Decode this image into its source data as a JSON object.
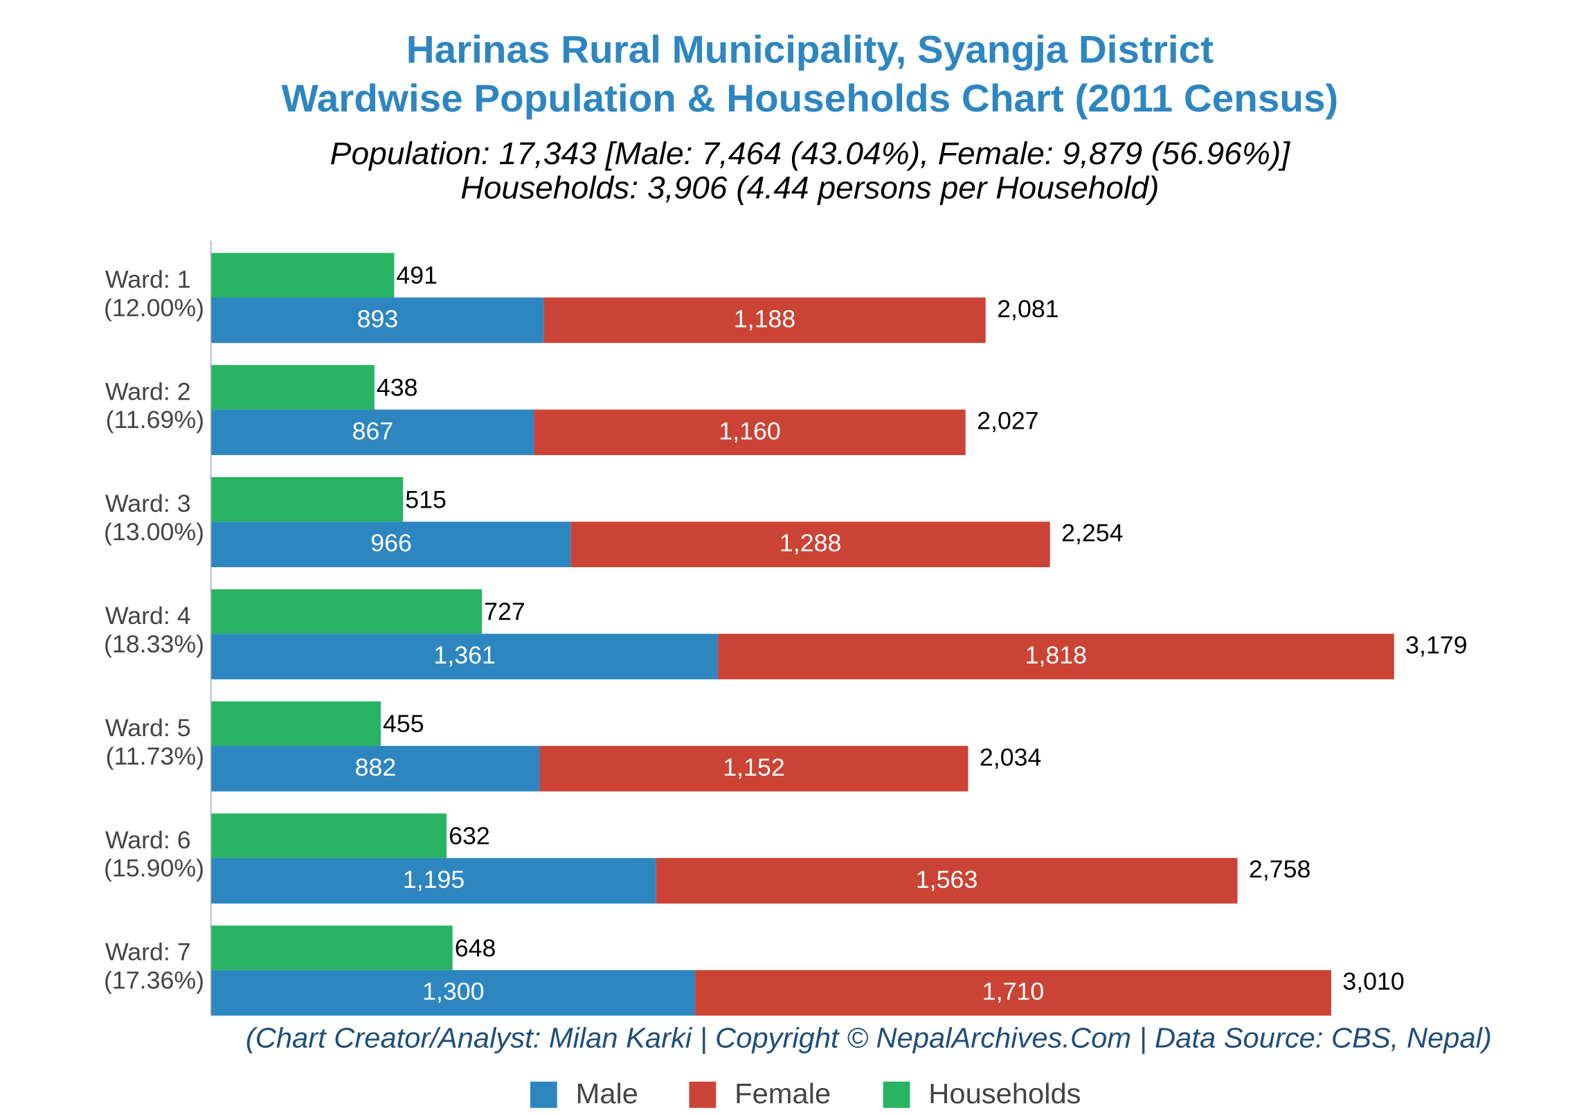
{
  "chart_data": {
    "type": "bar",
    "title": [
      "Harinas Rural Municipality, Syangja District",
      "Wardwise Population & Households Chart (2011 Census)"
    ],
    "subtitle": [
      "Population: 17,343 [Male: 7,464 (43.04%), Female: 9,879 (56.96%)]",
      "Households: 3,906 (4.44 persons per Household)"
    ],
    "footnote": "(Chart Creator/Analyst: Milan Karki | Copyright © NepalArchives.Com | Data Source: CBS, Nepal)",
    "categories": [
      "Ward: 1",
      "Ward: 2",
      "Ward: 3",
      "Ward: 4",
      "Ward: 5",
      "Ward: 6",
      "Ward: 7"
    ],
    "category_shares": [
      "(12.00%)",
      "(11.69%)",
      "(13.00%)",
      "(18.33%)",
      "(11.73%)",
      "(15.90%)",
      "(17.36%)"
    ],
    "orientation": "horizontal",
    "xlim": [
      0,
      3500
    ],
    "legend": "bottom",
    "series": [
      {
        "name": "Male",
        "color": "#2e86c1",
        "stack": "population",
        "values": [
          893,
          867,
          966,
          1361,
          882,
          1195,
          1300
        ],
        "value_labels": [
          "893",
          "867",
          "966",
          "1,361",
          "882",
          "1,195",
          "1,300"
        ]
      },
      {
        "name": "Female",
        "color": "#cb4335",
        "stack": "population",
        "values": [
          1188,
          1160,
          1288,
          1818,
          1152,
          1563,
          1710
        ],
        "value_labels": [
          "1,188",
          "1,160",
          "1,288",
          "1,818",
          "1,152",
          "1,563",
          "1,710"
        ]
      },
      {
        "name": "Households",
        "color": "#28b463",
        "stack": "households",
        "values": [
          491,
          438,
          515,
          727,
          455,
          632,
          648
        ]
      }
    ],
    "totals": {
      "values": [
        2081,
        2027,
        2254,
        3179,
        2034,
        2758,
        3010
      ],
      "value_labels": [
        "2,081",
        "2,027",
        "2,254",
        "3,179",
        "2,034",
        "2,758",
        "3,010"
      ]
    }
  }
}
